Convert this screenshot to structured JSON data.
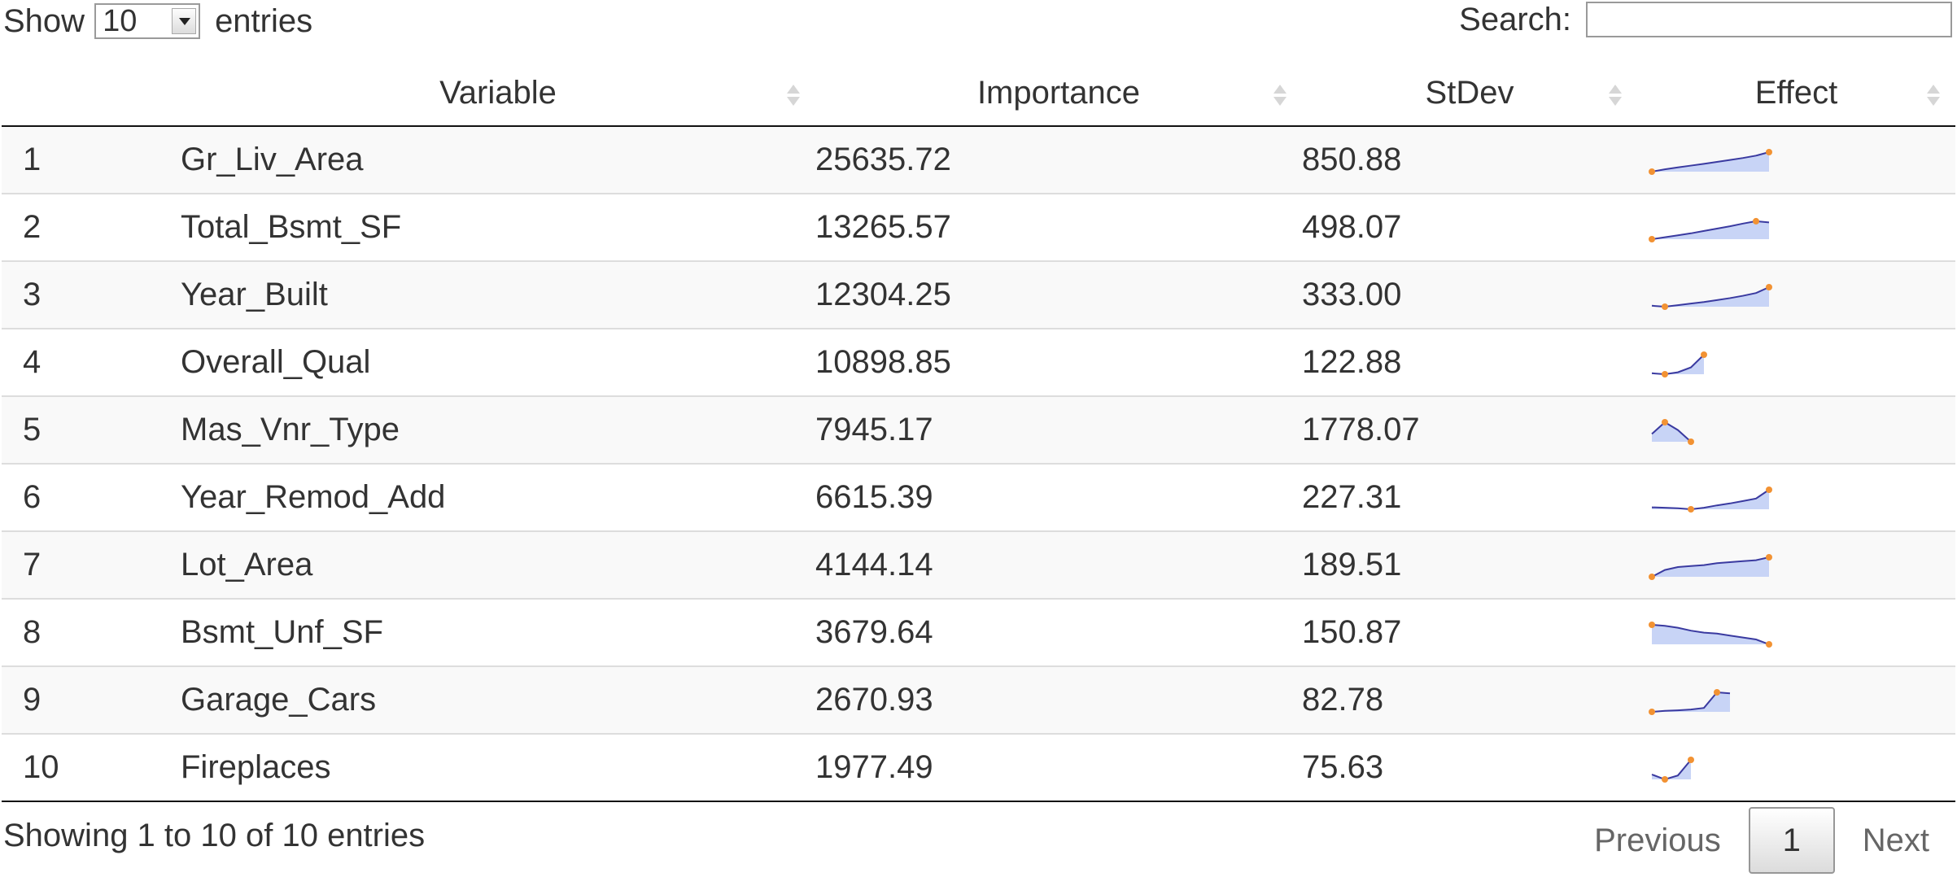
{
  "length_menu": {
    "show_label": "Show",
    "value": "10",
    "entries_label": "entries"
  },
  "search": {
    "label": "Search:",
    "value": "",
    "placeholder": ""
  },
  "columns": [
    "",
    "Variable",
    "Importance",
    "StDev",
    "Effect"
  ],
  "rows": [
    {
      "index": "1",
      "variable": "Gr_Liv_Area",
      "importance": "25635.72",
      "stdev": "850.88",
      "effect": [
        0,
        0.12,
        0.22,
        0.31,
        0.4,
        0.5,
        0.6,
        0.7,
        0.82,
        1.0
      ]
    },
    {
      "index": "2",
      "variable": "Total_Bsmt_SF",
      "importance": "13265.57",
      "stdev": "498.07",
      "effect": [
        0,
        0.1,
        0.2,
        0.3,
        0.42,
        0.54,
        0.66,
        0.8,
        0.92,
        0.86
      ]
    },
    {
      "index": "3",
      "variable": "Year_Built",
      "importance": "12304.25",
      "stdev": "333.00",
      "effect": [
        0.05,
        0,
        0.08,
        0.16,
        0.24,
        0.34,
        0.44,
        0.56,
        0.7,
        1.0
      ]
    },
    {
      "index": "4",
      "variable": "Overall_Qual",
      "importance": "10898.85",
      "stdev": "122.88",
      "effect": [
        0.05,
        0,
        0.1,
        0.35,
        1.0
      ]
    },
    {
      "index": "5",
      "variable": "Mas_Vnr_Type",
      "importance": "7945.17",
      "stdev": "1778.07",
      "effect": [
        0.4,
        1.0,
        0.6,
        0.0
      ]
    },
    {
      "index": "6",
      "variable": "Year_Remod_Add",
      "importance": "6615.39",
      "stdev": "227.31",
      "effect": [
        0.1,
        0.08,
        0.05,
        0.0,
        0.08,
        0.2,
        0.3,
        0.42,
        0.55,
        1.0
      ]
    },
    {
      "index": "7",
      "variable": "Lot_Area",
      "importance": "4144.14",
      "stdev": "189.51",
      "effect": [
        0,
        0.35,
        0.5,
        0.55,
        0.6,
        0.7,
        0.75,
        0.8,
        0.85,
        1.0
      ]
    },
    {
      "index": "8",
      "variable": "Bsmt_Unf_SF",
      "importance": "3679.64",
      "stdev": "150.87",
      "effect": [
        1.0,
        0.95,
        0.85,
        0.7,
        0.6,
        0.55,
        0.45,
        0.35,
        0.25,
        0.0
      ]
    },
    {
      "index": "9",
      "variable": "Garage_Cars",
      "importance": "2670.93",
      "stdev": "82.78",
      "effect": [
        0.0,
        0.05,
        0.08,
        0.12,
        0.2,
        1.0,
        0.95
      ]
    },
    {
      "index": "10",
      "variable": "Fireplaces",
      "importance": "1977.49",
      "stdev": "75.63",
      "effect": [
        0.25,
        0.0,
        0.2,
        1.0
      ]
    }
  ],
  "info_text": "Showing 1 to 10 of 10 entries",
  "pagination": {
    "previous": "Previous",
    "current": "1",
    "next": "Next"
  },
  "colors": {
    "sparkline_line": "#3a3aa0",
    "sparkline_fill": "#c8d4f6",
    "sparkline_marker": "#f29233",
    "stripe": "#f9f9f9"
  }
}
